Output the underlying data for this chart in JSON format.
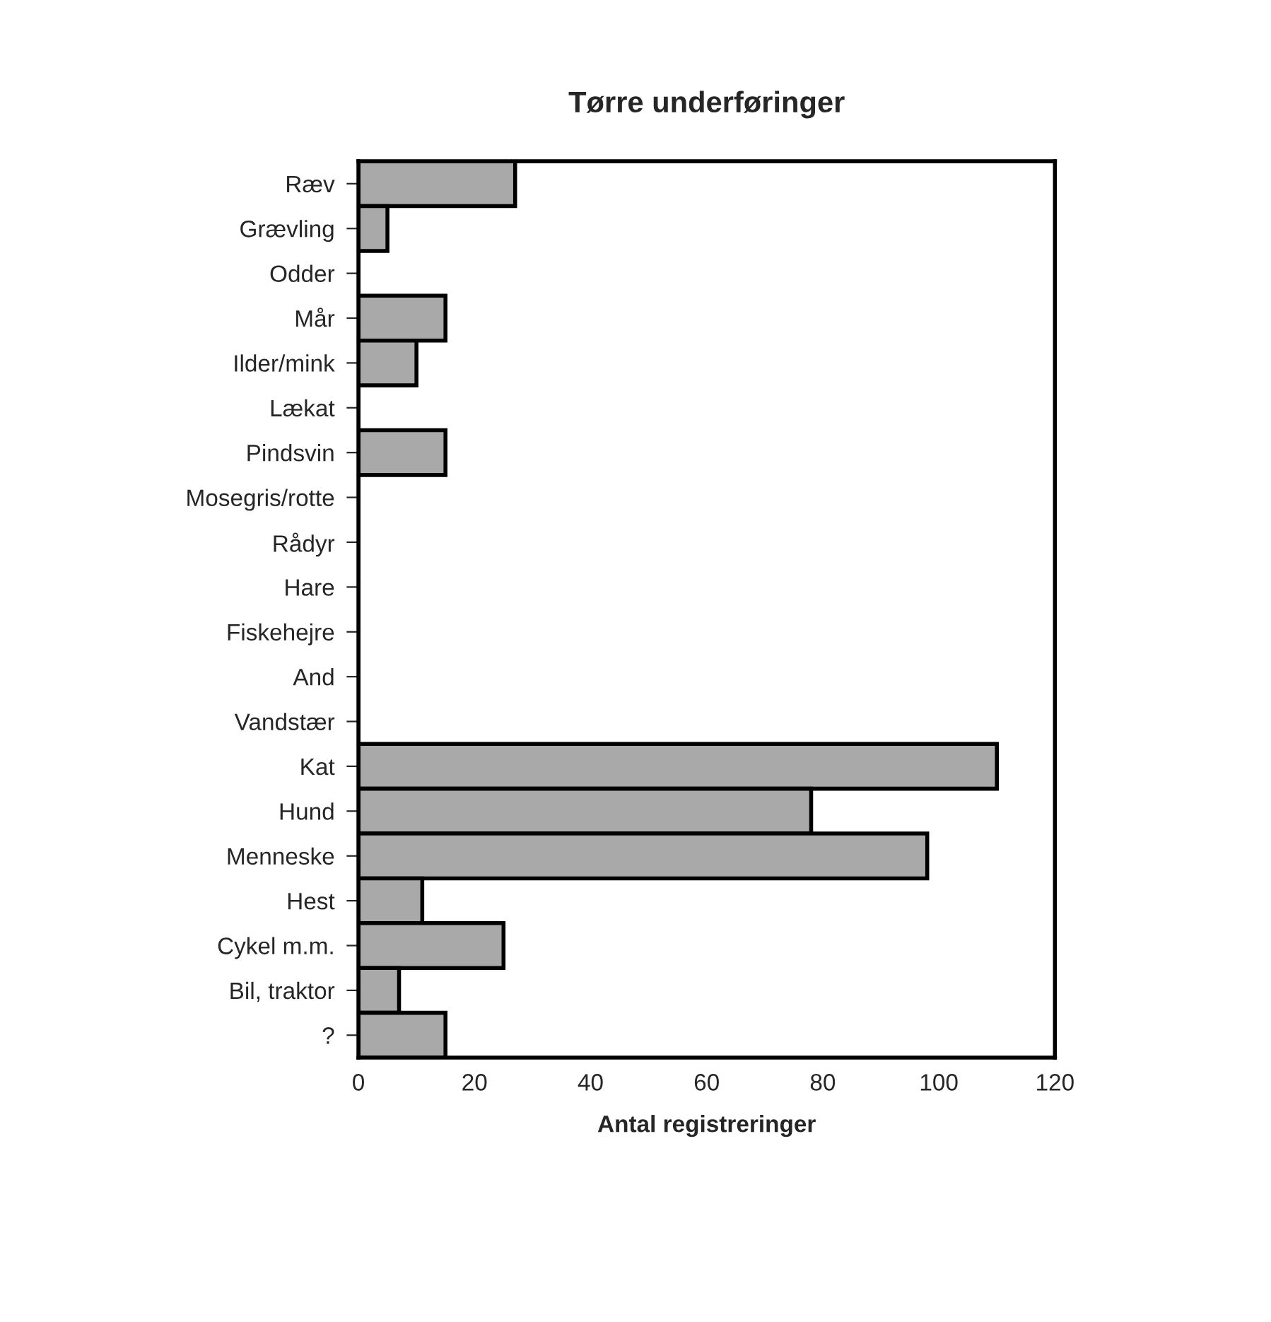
{
  "chart_data": {
    "type": "bar",
    "orientation": "horizontal",
    "title": "Tørre underføringer",
    "xlabel": "Antal registreringer",
    "categories": [
      "Ræv",
      "Grævling",
      "Odder",
      "Mår",
      "Ilder/mink",
      "Lækat",
      "Pindsvin",
      "Mosegris/rotte",
      "Rådyr",
      "Hare",
      "Fiskehejre",
      "And",
      "Vandstær",
      "Kat",
      "Hund",
      "Menneske",
      "Hest",
      "Cykel m.m.",
      "Bil, traktor",
      "?"
    ],
    "values": [
      27,
      5,
      0,
      15,
      10,
      0,
      15,
      0,
      0,
      0,
      0,
      0,
      0,
      110,
      78,
      98,
      11,
      25,
      7,
      15
    ],
    "color": "#a9a9a9",
    "xlim": [
      0,
      120
    ],
    "xticks": [
      0,
      20,
      40,
      60,
      80,
      100,
      120
    ],
    "grid": false
  }
}
